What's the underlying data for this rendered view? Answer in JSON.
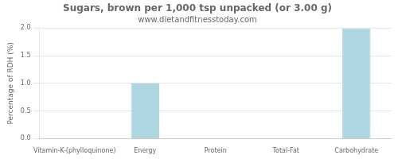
{
  "chart_data": {
    "type": "bar",
    "title": "Sugars, brown per 1,000 tsp unpacked (or 3.00 g)",
    "subtitle": "www.dietandfitnesstoday.com",
    "categories": [
      "Vitamin-K-(phylloquinone)",
      "Energy",
      "Protein",
      "Total-Fat",
      "Carbohydrate"
    ],
    "values": [
      0.0,
      1.0,
      0.0,
      0.0,
      2.0
    ],
    "color": "#aed6e0",
    "ylabel": "Percentage of RDH (%)",
    "ylim": [
      0,
      2.0
    ],
    "yticks": [
      {
        "value": 0,
        "label": "0.0"
      },
      0.5,
      {
        "value": 1,
        "label": "1.0"
      },
      1.5,
      {
        "value": 2,
        "label": "2.0"
      }
    ],
    "grid": true
  }
}
